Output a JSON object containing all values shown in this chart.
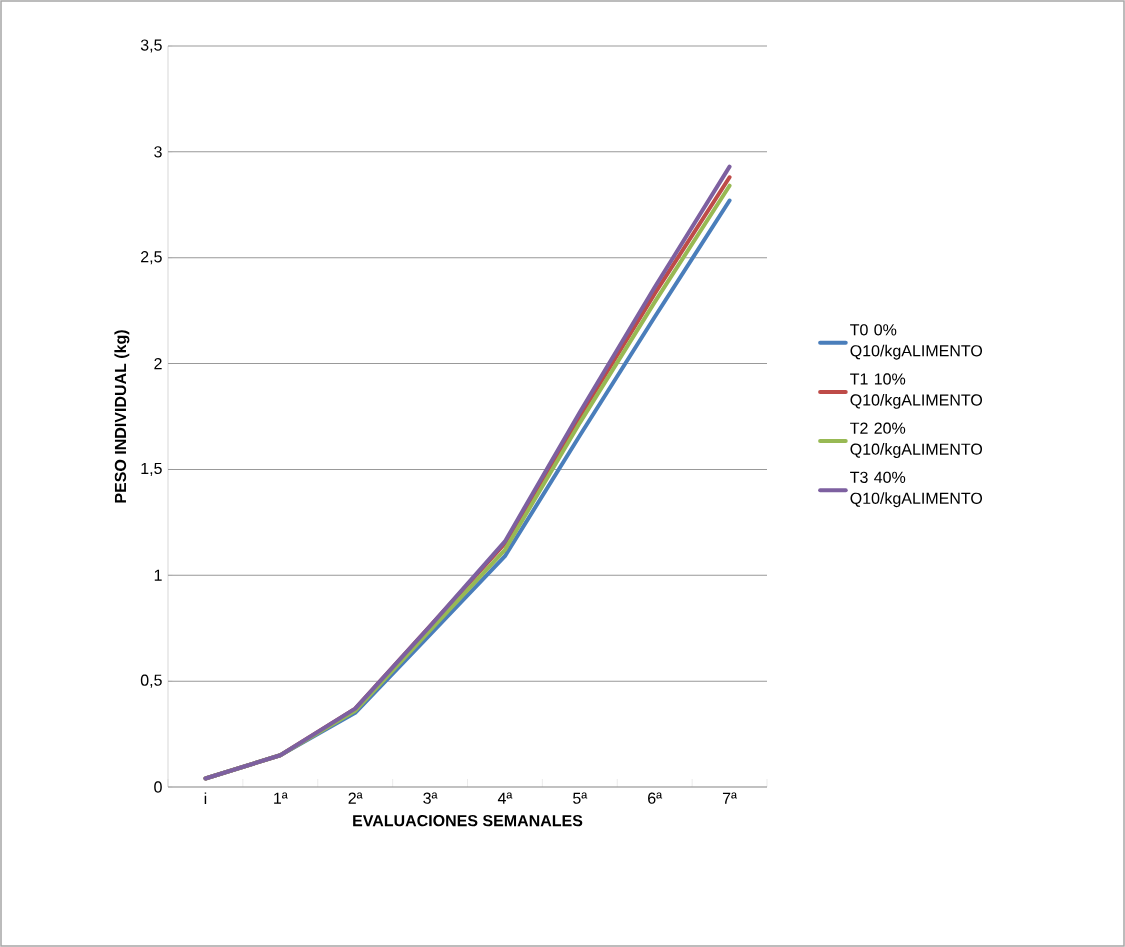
{
  "chart_data": {
    "type": "line",
    "xlabel": "EVALUACIONES SEMANALES",
    "ylabel": "PESO INDIVIDUAL (kg)",
    "categories": [
      "i",
      "1ª",
      "2ª",
      "3ª",
      "4ª",
      "5ª",
      "6ª",
      "7ª"
    ],
    "series": [
      {
        "name": "T0 0% Q10/kgALIMENTO",
        "color": "#4a7ebb",
        "values": [
          0.04,
          0.15,
          0.35,
          0.72,
          1.09,
          1.66,
          2.22,
          2.77
        ]
      },
      {
        "name": "T1 10% Q10/kgALIMENTO",
        "color": "#be4b48",
        "values": [
          0.04,
          0.15,
          0.37,
          0.76,
          1.15,
          1.75,
          2.33,
          2.88
        ]
      },
      {
        "name": "T2 20% Q10/kgALIMENTO",
        "color": "#98b954",
        "values": [
          0.04,
          0.15,
          0.36,
          0.74,
          1.12,
          1.72,
          2.29,
          2.84
        ]
      },
      {
        "name": "T3 40% Q10/kgALIMENTO",
        "color": "#7d60a0",
        "values": [
          0.04,
          0.15,
          0.37,
          0.76,
          1.16,
          1.77,
          2.36,
          2.93
        ]
      }
    ],
    "ylim": [
      0,
      3.5
    ],
    "yticks": [
      0,
      {
        "value": 0.5,
        "label": "0,5"
      },
      1,
      {
        "value": 1.5,
        "label": "1,5"
      },
      2,
      {
        "value": 2.5,
        "label": "2,5"
      },
      3,
      {
        "value": 3.5,
        "label": "3,5"
      }
    ],
    "grid": "y",
    "legend": "right",
    "marker": "none",
    "line_style": "solid"
  }
}
